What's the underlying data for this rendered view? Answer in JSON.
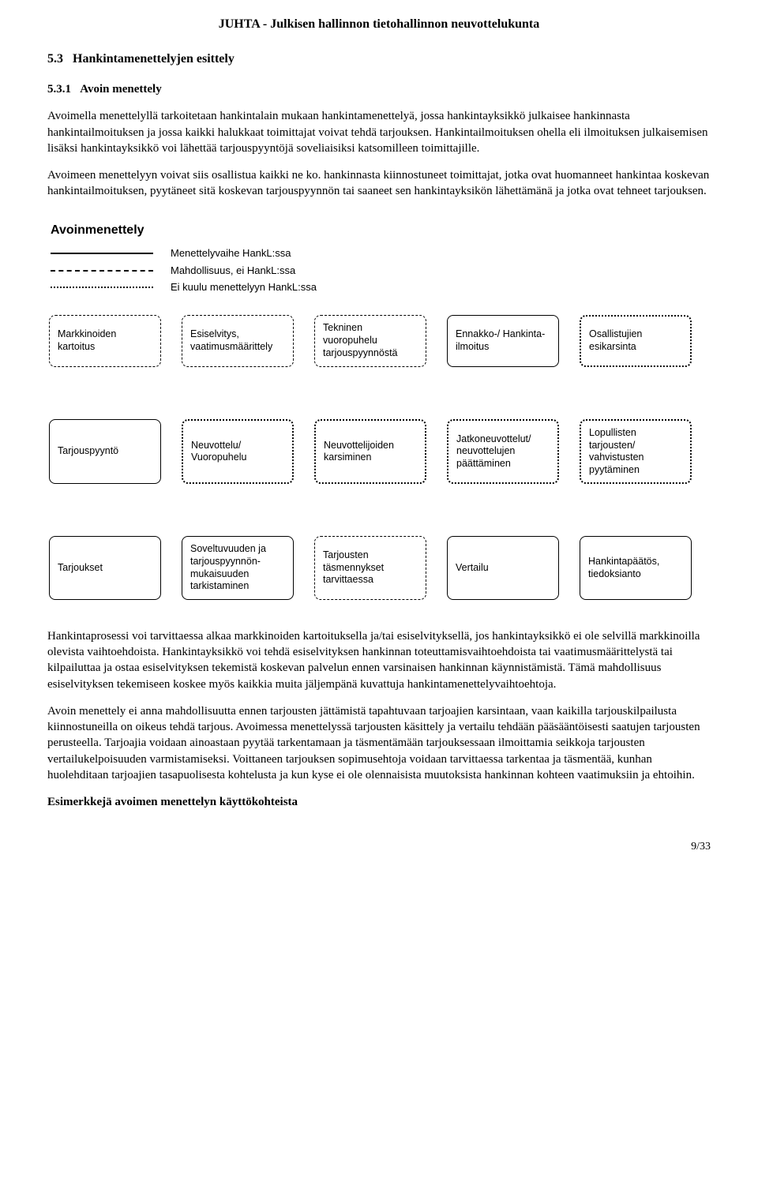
{
  "header": "JUHTA - Julkisen hallinnon tietohallinnon neuvottelukunta",
  "section": {
    "num": "5.3",
    "title": "Hankintamenettelyjen esittely",
    "sub_num": "5.3.1",
    "sub_title": "Avoin menettely"
  },
  "para1": "Avoimella menettelyllä tarkoitetaan hankintalain mukaan hankintamenettelyä, jossa hankintayksikkö julkaisee hankinnasta hankintailmoituksen ja jossa kaikki halukkaat toimittajat voivat tehdä tarjouksen. Hankintailmoituksen ohella eli ilmoituksen julkaisemisen lisäksi hankintayksikkö voi lähettää tarjouspyyntöjä soveliaisiksi katsomilleen toimittajille.",
  "para2": "Avoimeen menettelyyn voivat siis osallistua kaikki ne ko. hankinnasta kiinnostuneet toimittajat, jotka ovat huomanneet hankintaa koskevan hankintailmoituksen, pyytäneet sitä koskevan tarjouspyynnön tai saaneet sen hankintayksikön lähettämänä ja jotka ovat tehneet tarjouksen.",
  "diagram": {
    "title": "Avoinmenettely",
    "legend": {
      "solid": "Menettelyvaihe HankL:ssa",
      "dashed": "Mahdollisuus, ei HankL:ssa",
      "dotted": "Ei kuulu menettelyyn HankL:ssa"
    },
    "rows": [
      {
        "boxes": [
          {
            "style": "dashed",
            "label": "Markkinoiden kartoitus"
          },
          {
            "style": "dashed",
            "label": "Esiselvitys, vaatimusmäärittely"
          },
          {
            "style": "dashed",
            "label": "Tekninen vuoropuhelu tarjouspyynnöstä"
          },
          {
            "style": "solid",
            "label": "Ennakko-/ Hankinta-ilmoitus"
          },
          {
            "style": "dotted",
            "label": "Osallistujien esikarsinta"
          }
        ]
      },
      {
        "boxes": [
          {
            "style": "solid",
            "label": "Tarjouspyyntö"
          },
          {
            "style": "dotted",
            "label": "Neuvottelu/ Vuoropuhelu"
          },
          {
            "style": "dotted",
            "label": "Neuvottelijoiden karsiminen"
          },
          {
            "style": "dotted",
            "label": "Jatkoneuvottelut/ neuvottelujen päättäminen"
          },
          {
            "style": "dotted",
            "label": "Lopullisten tarjousten/ vahvistusten pyytäminen"
          }
        ]
      },
      {
        "boxes": [
          {
            "style": "solid",
            "label": "Tarjoukset"
          },
          {
            "style": "solid",
            "label": "Soveltuvuuden ja tarjouspyynnön-mukaisuuden tarkistaminen"
          },
          {
            "style": "dashed",
            "label": "Tarjousten täsmennykset tarvittaessa"
          },
          {
            "style": "solid",
            "label": "Vertailu"
          },
          {
            "style": "solid",
            "label": "Hankintapäätös, tiedoksianto"
          }
        ]
      }
    ]
  },
  "para3": "Hankintaprosessi voi tarvittaessa alkaa markkinoiden kartoituksella ja/tai esiselvityksellä, jos hankintayksikkö ei ole selvillä markkinoilla olevista vaihtoehdoista. Hankintayksikkö voi tehdä esiselvityksen hankinnan toteuttamisvaihtoehdoista tai vaatimusmäärittelystä tai kilpailuttaa ja ostaa esiselvityksen tekemistä koskevan palvelun ennen varsinaisen hankinnan käynnistämistä. Tämä mahdollisuus esiselvityksen tekemiseen koskee myös kaikkia muita jäljempänä kuvattuja hankintamenettelyvaihtoehtoja.",
  "para4": "Avoin menettely ei anna mahdollisuutta ennen tarjousten jättämistä tapahtuvaan tarjoajien karsintaan, vaan kaikilla tarjouskilpailusta kiinnostuneilla on oikeus tehdä tarjous. Avoimessa menettelyssä tarjousten käsittely ja vertailu tehdään pääsääntöisesti saatujen tarjousten perusteella. Tarjoajia voidaan ainoastaan pyytää tarkentamaan ja täsmentämään tarjouksessaan ilmoittamia seikkoja tarjousten vertailukelpoisuuden varmistamiseksi. Voittaneen tarjouksen sopimusehtoja voidaan tarvittaessa tarkentaa ja täsmentää, kunhan huolehditaan tarjoajien tasapuolisesta kohtelusta ja kun kyse ei ole olennaisista muutoksista hankinnan kohteen vaatimuksiin ja ehtoihin.",
  "subheading_examples": "Esimerkkejä avoimen menettelyn käyttökohteista",
  "page": "9/33"
}
